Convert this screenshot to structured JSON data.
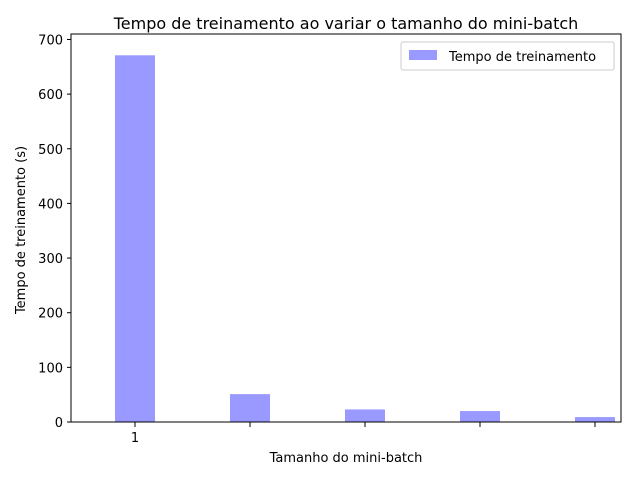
{
  "chart_data": {
    "type": "bar",
    "title": "Tempo de treinamento ao variar o tamanho do mini-batch",
    "xlabel": "Tamanho do mini-batch",
    "ylabel": "Tempo de treinamento (s)",
    "categories": [
      "1",
      "",
      "",
      "",
      ""
    ],
    "series": [
      {
        "name": "Tempo de treinamento",
        "values": [
          671,
          51,
          23,
          20,
          9
        ],
        "color": "#9999ff"
      }
    ],
    "ylim": [
      0,
      710
    ],
    "yticks": [
      0,
      100,
      200,
      300,
      400,
      500,
      600,
      700
    ],
    "grid": false,
    "legend": "top-right"
  }
}
